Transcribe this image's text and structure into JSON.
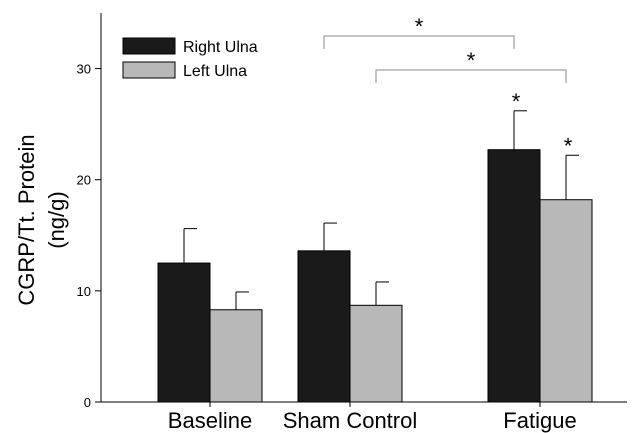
{
  "chart_data": {
    "type": "bar",
    "title": "",
    "xlabel": "",
    "ylabel": [
      "CGRP/Tt. Protein",
      "(ng/g)"
    ],
    "categories": [
      "Baseline",
      "Sham Control",
      "Fatigue"
    ],
    "ylim": [
      0,
      35
    ],
    "yticks": [
      0,
      10,
      20,
      30
    ],
    "grid": false,
    "legend_position": "top-left",
    "series": [
      {
        "name": "Right Ulna",
        "color": "#1a1a1a",
        "values": [
          12.5,
          13.6,
          22.7
        ],
        "errors": [
          3.1,
          2.5,
          3.5
        ],
        "significance": [
          "",
          "",
          "*"
        ]
      },
      {
        "name": "Left Ulna",
        "color": "#b8b8b8",
        "values": [
          8.3,
          8.7,
          18.2
        ],
        "errors": [
          1.6,
          2.1,
          4.0
        ],
        "significance": [
          "",
          "",
          "*"
        ]
      }
    ],
    "brackets": [
      {
        "from": {
          "category": 1,
          "series": 0
        },
        "to": {
          "category": 2,
          "series": 0
        },
        "label": "*"
      },
      {
        "from": {
          "category": 1,
          "series": 1
        },
        "to": {
          "category": 2,
          "series": 1
        },
        "label": "*"
      }
    ]
  }
}
